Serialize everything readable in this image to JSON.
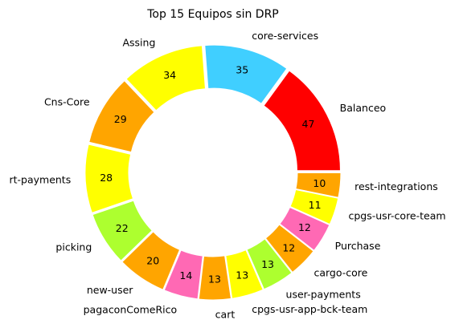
{
  "chart_data": {
    "type": "pie",
    "variant": "donut",
    "title": "Top 15 Equipos sin DRP",
    "categories": [
      "Balanceo",
      "core-services",
      "Assing",
      "Cns-Core",
      "rt-payments",
      "picking",
      "new-user",
      "pagaconComeRico",
      "cart",
      "cpgs-usr-app-bck-team",
      "user-payments",
      "cargo-core",
      "Purchase",
      "cpgs-usr-core-team",
      "rest-integrations"
    ],
    "values": [
      47,
      35,
      34,
      29,
      28,
      22,
      20,
      14,
      13,
      13,
      13,
      12,
      12,
      11,
      10
    ],
    "colors": [
      "#ff0000",
      "#40cfff",
      "#ffff00",
      "#ffa500",
      "#ffff00",
      "#adff2f",
      "#ffa500",
      "#ff69b4",
      "#ffa500",
      "#ffff00",
      "#adff2f",
      "#ffa500",
      "#ff69b4",
      "#ffff00",
      "#ffa500"
    ],
    "start_angle_deg": 0,
    "direction": "counterclockwise",
    "legend": "none"
  }
}
